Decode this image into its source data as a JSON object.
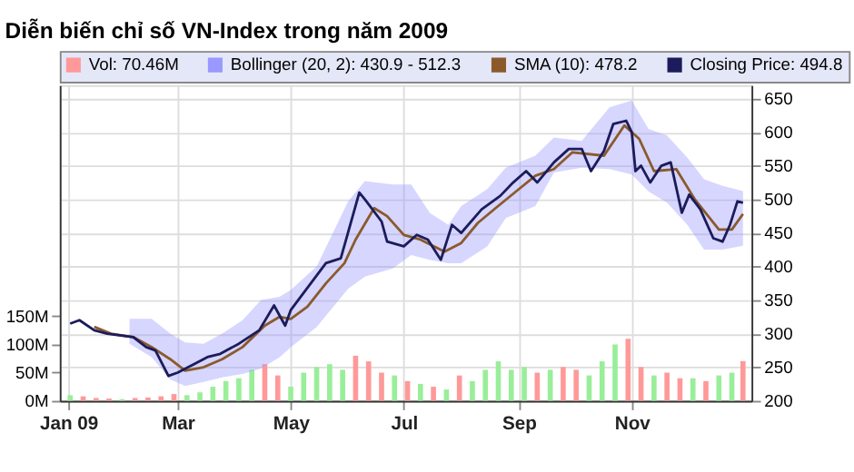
{
  "chart_data": {
    "type": "line",
    "title": "Diễn biến chỉ số VN-Index trong năm 2009",
    "xlim": [
      "2009-01-01",
      "2009-12-31"
    ],
    "xticks": [
      {
        "value": "2009-01-01",
        "label": "Jan 09"
      },
      {
        "value": "2009-03-01",
        "label": "Mar"
      },
      {
        "value": "2009-05-01",
        "label": "May"
      },
      {
        "value": "2009-07-01",
        "label": "Jul"
      },
      {
        "value": "2009-09-01",
        "label": "Sep"
      },
      {
        "value": "2009-11-01",
        "label": "Nov"
      }
    ],
    "ylim": [
      200,
      670
    ],
    "yticks": [
      200,
      250,
      300,
      350,
      400,
      450,
      500,
      550,
      600,
      650
    ],
    "y2lim": [
      0,
      560
    ],
    "y2ticks": [
      {
        "value": 0,
        "label": "0M"
      },
      {
        "value": 50,
        "label": "50M"
      },
      {
        "value": 100,
        "label": "100M"
      },
      {
        "value": 150,
        "label": "150M"
      }
    ],
    "grid": true,
    "legend": "top",
    "line_style": "solid",
    "series": [
      {
        "name": "Vol: 70.46M",
        "type": "bar",
        "axis": "y2",
        "color": "#ff9999",
        "x": [
          "2009-01-02",
          "2009-01-09",
          "2009-01-16",
          "2009-01-23",
          "2009-01-30",
          "2009-02-06",
          "2009-02-13",
          "2009-02-20",
          "2009-02-27",
          "2009-03-06",
          "2009-03-13",
          "2009-03-20",
          "2009-03-27",
          "2009-04-03",
          "2009-04-10",
          "2009-04-17",
          "2009-04-24",
          "2009-05-01",
          "2009-05-08",
          "2009-05-15",
          "2009-05-22",
          "2009-05-29",
          "2009-06-05",
          "2009-06-12",
          "2009-06-19",
          "2009-06-26",
          "2009-07-03",
          "2009-07-10",
          "2009-07-17",
          "2009-07-24",
          "2009-07-31",
          "2009-08-07",
          "2009-08-14",
          "2009-08-21",
          "2009-08-28",
          "2009-09-04",
          "2009-09-11",
          "2009-09-18",
          "2009-09-25",
          "2009-10-02",
          "2009-10-09",
          "2009-10-16",
          "2009-10-23",
          "2009-10-30",
          "2009-11-06",
          "2009-11-13",
          "2009-11-20",
          "2009-11-27",
          "2009-12-04",
          "2009-12-11",
          "2009-12-18",
          "2009-12-25",
          "2009-12-31"
        ],
        "values": [
          10,
          8,
          5,
          4,
          3,
          5,
          6,
          8,
          12,
          10,
          15,
          25,
          35,
          40,
          55,
          65,
          45,
          25,
          50,
          60,
          65,
          55,
          80,
          70,
          50,
          45,
          35,
          30,
          25,
          20,
          45,
          35,
          55,
          70,
          55,
          60,
          50,
          55,
          60,
          55,
          45,
          70,
          100,
          110,
          60,
          45,
          50,
          40,
          40,
          35,
          45,
          50,
          70.46
        ],
        "colors": [
          "#99ee99",
          "#ff9999",
          "#ff9999",
          "#ff9999",
          "#99ee99",
          "#ff9999",
          "#ff9999",
          "#ff9999",
          "#ff9999",
          "#99ee99",
          "#99ee99",
          "#99ee99",
          "#99ee99",
          "#99ee99",
          "#99ee99",
          "#ff9999",
          "#ff9999",
          "#99ee99",
          "#99ee99",
          "#99ee99",
          "#99ee99",
          "#99ee99",
          "#ff9999",
          "#ff9999",
          "#ff9999",
          "#99ee99",
          "#ff9999",
          "#99ee99",
          "#ff9999",
          "#99ee99",
          "#ff9999",
          "#99ee99",
          "#99ee99",
          "#99ee99",
          "#99ee99",
          "#99ee99",
          "#ff9999",
          "#99ee99",
          "#ff9999",
          "#ff9999",
          "#99ee99",
          "#99ee99",
          "#99ee99",
          "#ff9999",
          "#ff9999",
          "#99ee99",
          "#ff9999",
          "#ff9999",
          "#99ee99",
          "#ff9999",
          "#99ee99",
          "#99ee99",
          "#ff9999"
        ]
      },
      {
        "name": "Bollinger (20, 2): 430.9 - 512.3",
        "type": "area",
        "color": "#9999ff",
        "x": [
          "2009-02-03",
          "2009-02-15",
          "2009-02-25",
          "2009-03-05",
          "2009-03-15",
          "2009-03-25",
          "2009-04-05",
          "2009-04-15",
          "2009-04-25",
          "2009-05-01",
          "2009-05-15",
          "2009-06-01",
          "2009-06-10",
          "2009-06-25",
          "2009-07-05",
          "2009-07-15",
          "2009-07-25",
          "2009-08-01",
          "2009-08-15",
          "2009-08-25",
          "2009-09-10",
          "2009-09-20",
          "2009-10-05",
          "2009-10-20",
          "2009-11-01",
          "2009-11-10",
          "2009-11-20",
          "2009-12-01",
          "2009-12-10",
          "2009-12-20",
          "2009-12-31"
        ],
        "values": [
          null,
          null,
          null,
          null,
          null,
          null,
          null,
          null,
          null,
          null,
          null,
          null,
          null,
          null,
          null,
          null,
          null,
          null,
          null,
          null,
          null,
          null,
          null,
          null,
          null,
          null,
          null,
          null,
          null,
          null,
          null
        ],
        "lower": [
          285,
          265,
          232,
          222,
          228,
          235,
          240,
          248,
          265,
          280,
          310,
          367,
          385,
          397,
          417,
          410,
          405,
          405,
          430,
          472,
          490,
          540,
          547,
          545,
          537,
          512,
          495,
          462,
          425,
          425,
          430.9
        ],
        "upper": [
          322,
          322,
          300,
          287,
          285,
          300,
          320,
          350,
          355,
          365,
          400,
          497,
          527,
          522,
          522,
          480,
          462,
          490,
          515,
          547,
          565,
          592,
          587,
          637,
          647,
          605,
          595,
          562,
          530,
          520,
          512.3
        ]
      },
      {
        "name": "SMA (10): 478.2",
        "type": "line",
        "color": "#8b5a2b",
        "x": [
          "2009-01-15",
          "2009-01-24",
          "2009-02-05",
          "2009-02-15",
          "2009-02-25",
          "2009-03-05",
          "2009-03-15",
          "2009-03-25",
          "2009-04-05",
          "2009-04-17",
          "2009-04-25",
          "2009-05-01",
          "2009-05-10",
          "2009-05-20",
          "2009-05-30",
          "2009-06-05",
          "2009-06-15",
          "2009-06-22",
          "2009-07-01",
          "2009-07-10",
          "2009-07-23",
          "2009-08-01",
          "2009-08-10",
          "2009-08-20",
          "2009-09-01",
          "2009-09-10",
          "2009-09-20",
          "2009-09-30",
          "2009-10-17",
          "2009-10-28",
          "2009-11-05",
          "2009-11-13",
          "2009-11-25",
          "2009-12-05",
          "2009-12-18",
          "2009-12-25",
          "2009-12-31"
        ],
        "values": [
          310,
          300,
          295,
          280,
          262,
          245,
          250,
          262,
          280,
          312,
          325,
          322,
          340,
          375,
          405,
          440,
          487,
          475,
          447,
          440,
          422,
          435,
          465,
          488,
          515,
          535,
          545,
          570,
          565,
          610,
          590,
          542,
          545,
          500,
          455,
          455,
          478.2
        ]
      },
      {
        "name": "Closing Price: 494.8",
        "type": "line",
        "color": "#1c1c5c",
        "x": [
          "2009-01-02",
          "2009-01-07",
          "2009-01-15",
          "2009-01-22",
          "2009-02-05",
          "2009-02-12",
          "2009-02-17",
          "2009-02-24",
          "2009-03-01",
          "2009-03-10",
          "2009-03-17",
          "2009-03-24",
          "2009-04-03",
          "2009-04-14",
          "2009-04-22",
          "2009-04-28",
          "2009-05-01",
          "2009-05-20",
          "2009-05-28",
          "2009-06-07",
          "2009-06-10",
          "2009-06-19",
          "2009-06-22",
          "2009-07-01",
          "2009-07-08",
          "2009-07-14",
          "2009-07-21",
          "2009-07-27",
          "2009-08-01",
          "2009-08-12",
          "2009-08-22",
          "2009-08-29",
          "2009-09-05",
          "2009-09-11",
          "2009-09-20",
          "2009-09-28",
          "2009-10-05",
          "2009-10-10",
          "2009-10-17",
          "2009-10-22",
          "2009-10-29",
          "2009-11-01",
          "2009-11-03",
          "2009-11-06",
          "2009-11-11",
          "2009-11-17",
          "2009-11-22",
          "2009-11-28",
          "2009-12-02",
          "2009-12-08",
          "2009-12-15",
          "2009-12-20",
          "2009-12-24",
          "2009-12-28",
          "2009-12-31"
        ],
        "values": [
          315,
          320,
          305,
          300,
          295,
          280,
          275,
          237,
          242,
          255,
          265,
          270,
          285,
          305,
          342,
          312,
          335,
          405,
          412,
          510,
          500,
          467,
          437,
          430,
          447,
          440,
          410,
          462,
          450,
          485,
          505,
          525,
          542,
          525,
          555,
          575,
          575,
          542,
          572,
          612,
          617,
          600,
          542,
          550,
          525,
          550,
          555,
          480,
          507,
          485,
          442,
          437,
          462,
          497,
          494.8
        ]
      }
    ]
  }
}
